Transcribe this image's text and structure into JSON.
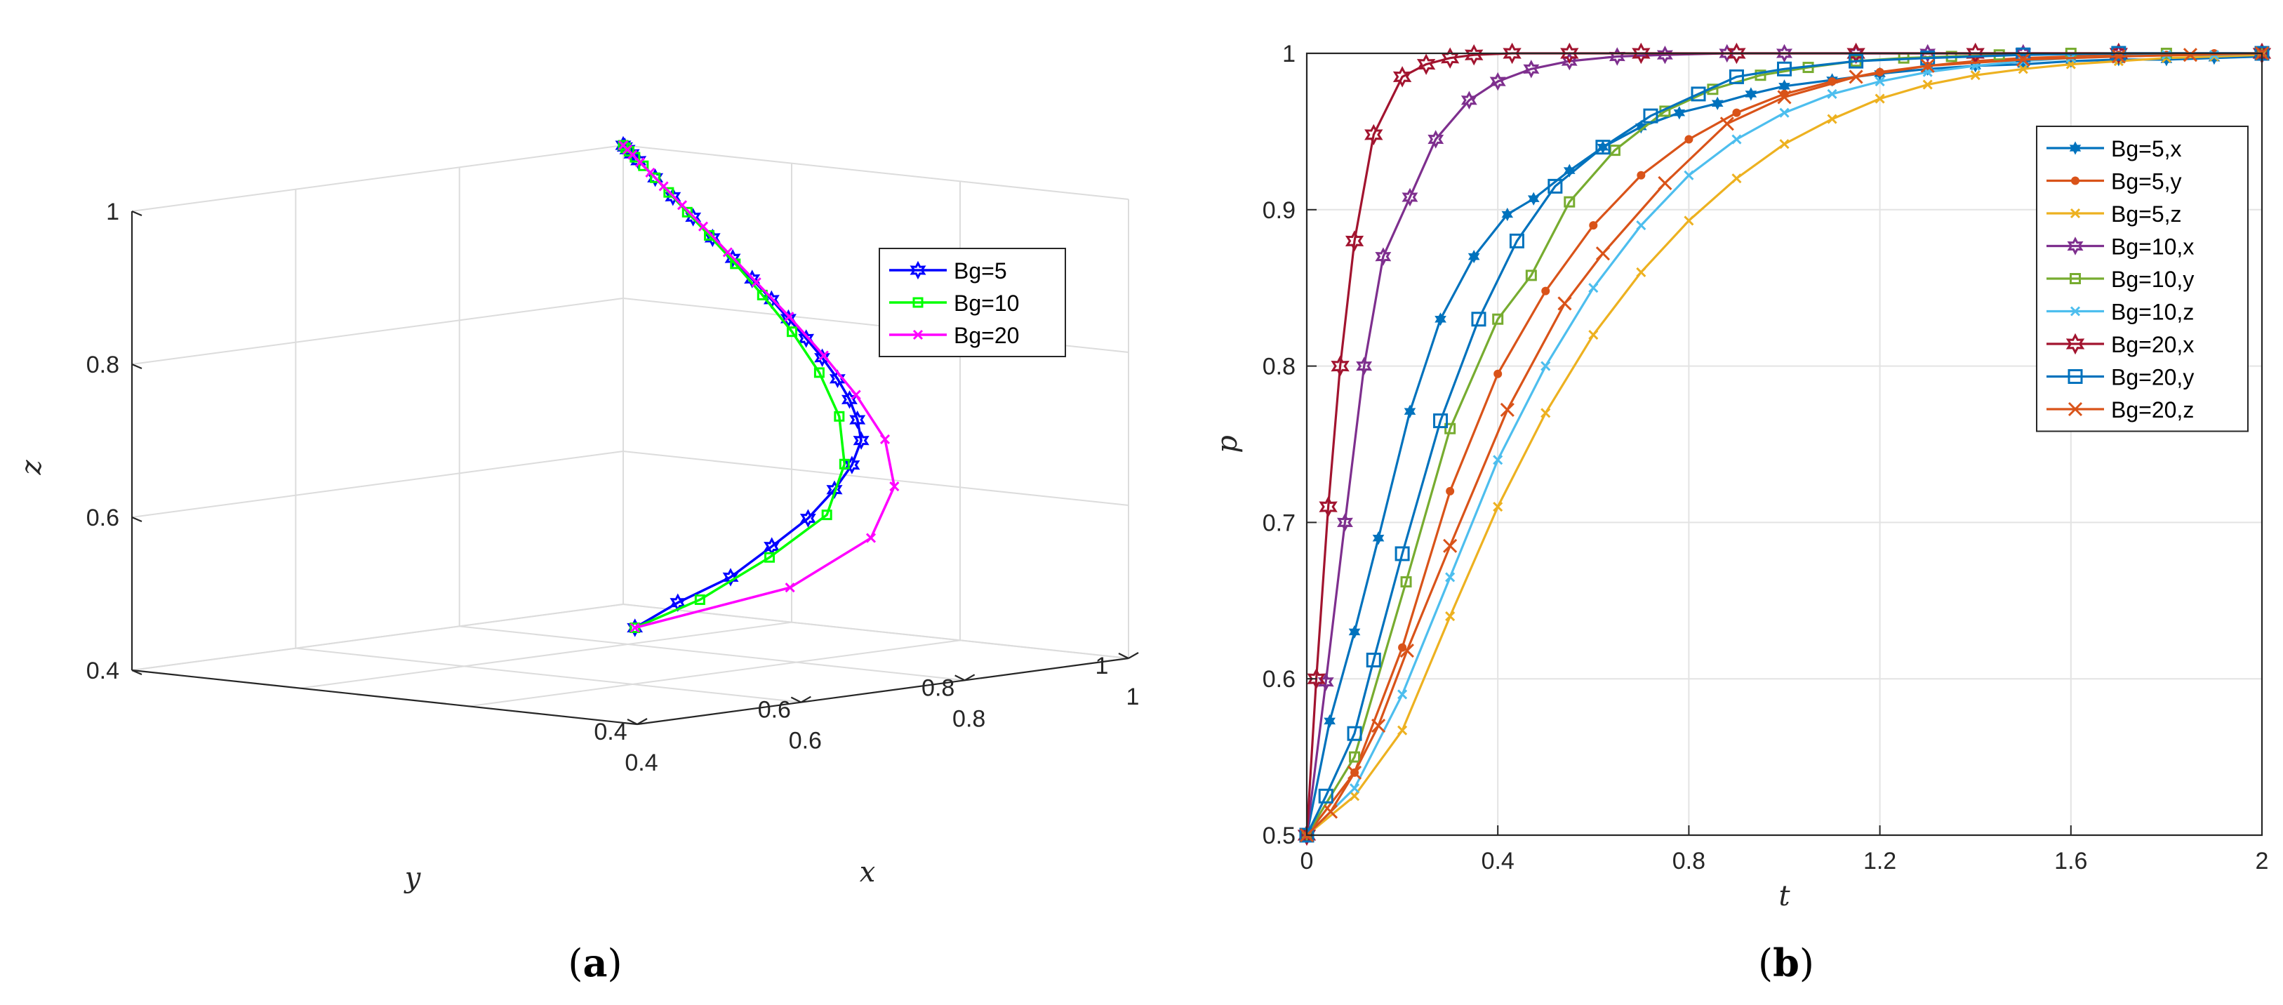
{
  "panels": [
    {
      "paren_open": "(",
      "letter": "a",
      "paren_close": ")"
    },
    {
      "paren_open": "(",
      "letter": "b",
      "paren_close": ")"
    }
  ],
  "chart_data": [
    {
      "type": "line3d",
      "panel": "a",
      "xlabel": "x",
      "ylabel": "y",
      "zlabel": "z",
      "xlim": [
        0.4,
        1
      ],
      "ylim": [
        0.4,
        1
      ],
      "zlim": [
        0.4,
        1
      ],
      "xticks": [
        0.4,
        0.6,
        0.8,
        1
      ],
      "yticks": [
        0.4,
        0.6,
        0.8,
        1
      ],
      "zticks": [
        0.4,
        0.6,
        0.8,
        1
      ],
      "xtick_labels": [
        "0.4",
        "0.6",
        "0.8",
        "1"
      ],
      "ytick_labels": [
        "0.4",
        "0.6",
        "0.8",
        "1"
      ],
      "ztick_labels": [
        "0.4",
        "0.6",
        "0.8",
        "1"
      ],
      "grid": true,
      "legend_position": "top-right",
      "series": [
        {
          "name": "Bg=5",
          "color": "#0000ff",
          "marker": "hexagram",
          "points": [
            [
              0.5,
              0.5,
              0.5
            ],
            [
              0.573,
              0.52,
              0.52
            ],
            [
              0.657,
              0.539,
              0.539
            ],
            [
              0.734,
              0.565,
              0.565
            ],
            [
              0.803,
              0.589,
              0.589
            ],
            [
              0.862,
              0.615,
              0.615
            ],
            [
              0.907,
              0.638,
              0.638
            ],
            [
              0.943,
              0.662,
              0.662
            ],
            [
              0.961,
              0.684,
              0.684
            ],
            [
              0.974,
              0.706,
              0.706
            ],
            [
              0.983,
              0.729,
              0.729
            ],
            [
              0.989,
              0.753,
              0.753
            ],
            [
              0.992,
              0.775,
              0.775
            ],
            [
              0.994,
              0.798,
              0.798
            ],
            [
              0.996,
              0.82,
              0.82
            ],
            [
              0.997,
              0.844,
              0.844
            ],
            [
              0.998,
              0.868,
              0.868
            ],
            [
              0.998,
              0.892,
              0.892
            ],
            [
              0.999,
              0.916,
              0.916
            ],
            [
              0.999,
              0.94,
              0.94
            ],
            [
              1.0,
              0.962,
              0.962
            ],
            [
              1.0,
              0.982,
              0.982
            ],
            [
              1.0,
              0.99,
              0.99
            ],
            [
              1.0,
              0.995,
              0.995
            ],
            [
              1.0,
              0.998,
              0.998
            ],
            [
              1.0,
              1.0,
              1.0
            ]
          ]
        },
        {
          "name": "Bg=10",
          "color": "#00ff00",
          "marker": "square",
          "points": [
            [
              0.5,
              0.5,
              0.5
            ],
            [
              0.6,
              0.52,
              0.52
            ],
            [
              0.72,
              0.554,
              0.554
            ],
            [
              0.827,
              0.59,
              0.59
            ],
            [
              0.9,
              0.64,
              0.64
            ],
            [
              0.945,
              0.69,
              0.69
            ],
            [
              0.97,
              0.738,
              0.738
            ],
            [
              0.984,
              0.784,
              0.784
            ],
            [
              0.991,
              0.826,
              0.826
            ],
            [
              0.995,
              0.862,
              0.862
            ],
            [
              0.997,
              0.895,
              0.895
            ],
            [
              0.998,
              0.922,
              0.922
            ],
            [
              0.999,
              0.945,
              0.945
            ],
            [
              1.0,
              0.962,
              0.962
            ],
            [
              1.0,
              0.976,
              0.976
            ],
            [
              1.0,
              0.986,
              0.986
            ],
            [
              1.0,
              0.993,
              0.993
            ],
            [
              1.0,
              0.997,
              0.997
            ],
            [
              1.0,
              1.0,
              1.0
            ]
          ]
        },
        {
          "name": "Bg=20",
          "color": "#ff00ff",
          "marker": "x",
          "points": [
            [
              0.5,
              0.5,
              0.5
            ],
            [
              0.71,
              0.52,
              0.52
            ],
            [
              0.85,
              0.56,
              0.56
            ],
            [
              0.93,
              0.61,
              0.61
            ],
            [
              0.97,
              0.66,
              0.66
            ],
            [
              0.986,
              0.71,
              0.71
            ],
            [
              0.993,
              0.755,
              0.755
            ],
            [
              0.997,
              0.8,
              0.8
            ],
            [
              0.998,
              0.84,
              0.84
            ],
            [
              0.999,
              0.875,
              0.875
            ],
            [
              1.0,
              0.905,
              0.905
            ],
            [
              1.0,
              0.93,
              0.93
            ],
            [
              1.0,
              0.952,
              0.952
            ],
            [
              1.0,
              0.968,
              0.968
            ],
            [
              1.0,
              0.98,
              0.98
            ],
            [
              1.0,
              0.989,
              0.989
            ],
            [
              1.0,
              0.995,
              0.995
            ],
            [
              1.0,
              1.0,
              1.0
            ]
          ]
        }
      ]
    },
    {
      "type": "line",
      "panel": "b",
      "xlabel": "t",
      "ylabel": "p",
      "xlim": [
        0,
        2
      ],
      "ylim": [
        0.5,
        1
      ],
      "xticks": [
        0,
        0.4,
        0.8,
        1.2,
        1.6,
        2
      ],
      "yticks": [
        0.5,
        0.6,
        0.7,
        0.8,
        0.9,
        1
      ],
      "xtick_labels": [
        "0",
        "0.4",
        "0.8",
        "1.2",
        "1.6",
        "2"
      ],
      "ytick_labels": [
        "0.5",
        "0.6",
        "0.7",
        "0.8",
        "0.9",
        "1"
      ],
      "grid": true,
      "legend_position": "top-right",
      "series": [
        {
          "name": "Bg=5,x",
          "color": "#0072bd",
          "marker": "star",
          "x": [
            0,
            0.048,
            0.1,
            0.15,
            0.216,
            0.28,
            0.35,
            0.42,
            0.475,
            0.55,
            0.62,
            0.7,
            0.78,
            0.86,
            0.93,
            1.0,
            1.1,
            1.2,
            1.3,
            1.4,
            1.5,
            1.6,
            1.7,
            1.8,
            1.9,
            2.0
          ],
          "y": [
            0.5,
            0.573,
            0.63,
            0.69,
            0.771,
            0.83,
            0.87,
            0.897,
            0.907,
            0.925,
            0.94,
            0.953,
            0.962,
            0.968,
            0.974,
            0.979,
            0.983,
            0.987,
            0.99,
            0.992,
            0.993,
            0.995,
            0.996,
            0.996,
            0.997,
            0.998
          ]
        },
        {
          "name": "Bg=5,y",
          "color": "#d95319",
          "marker": "dot",
          "x": [
            0,
            0.1,
            0.2,
            0.3,
            0.4,
            0.5,
            0.6,
            0.7,
            0.8,
            0.9,
            1.0,
            1.1,
            1.2,
            1.3,
            1.4,
            1.5,
            1.6,
            1.7,
            1.8,
            1.9,
            2.0
          ],
          "y": [
            0.5,
            0.54,
            0.62,
            0.72,
            0.795,
            0.848,
            0.89,
            0.922,
            0.945,
            0.962,
            0.974,
            0.982,
            0.988,
            0.992,
            0.995,
            0.997,
            0.998,
            0.999,
            0.999,
            1.0,
            1.0
          ]
        },
        {
          "name": "Bg=5,z",
          "color": "#edb120",
          "marker": "x-small",
          "x": [
            0,
            0.1,
            0.2,
            0.3,
            0.4,
            0.5,
            0.6,
            0.7,
            0.8,
            0.9,
            1.0,
            1.1,
            1.2,
            1.3,
            1.4,
            1.5,
            1.6,
            1.7,
            1.8,
            1.9,
            2.0
          ],
          "y": [
            0.5,
            0.525,
            0.567,
            0.64,
            0.71,
            0.77,
            0.82,
            0.86,
            0.893,
            0.92,
            0.942,
            0.958,
            0.971,
            0.98,
            0.986,
            0.99,
            0.993,
            0.995,
            0.997,
            0.998,
            0.999
          ]
        },
        {
          "name": "Bg=10,x",
          "color": "#7e2f8e",
          "marker": "hexagram",
          "x": [
            0,
            0.04,
            0.08,
            0.12,
            0.16,
            0.216,
            0.27,
            0.34,
            0.4,
            0.47,
            0.55,
            0.65,
            0.75,
            0.88,
            1.0,
            1.15,
            1.3,
            1.5,
            1.7,
            2.0
          ],
          "y": [
            0.5,
            0.598,
            0.7,
            0.8,
            0.87,
            0.908,
            0.945,
            0.97,
            0.982,
            0.99,
            0.995,
            0.998,
            0.999,
            1.0,
            1.0,
            1.0,
            1.0,
            1.0,
            1.0,
            1.0
          ]
        },
        {
          "name": "Bg=10,y",
          "color": "#77ac30",
          "marker": "square-small",
          "x": [
            0,
            0.1,
            0.208,
            0.3,
            0.4,
            0.47,
            0.55,
            0.645,
            0.75,
            0.85,
            0.95,
            1.05,
            1.15,
            1.25,
            1.35,
            1.45,
            1.6,
            1.8,
            2.0
          ],
          "y": [
            0.5,
            0.55,
            0.662,
            0.76,
            0.83,
            0.858,
            0.905,
            0.938,
            0.963,
            0.977,
            0.986,
            0.991,
            0.995,
            0.997,
            0.998,
            0.999,
            1.0,
            1.0,
            1.0
          ]
        },
        {
          "name": "Bg=10,z",
          "color": "#4dbeee",
          "marker": "x-small",
          "x": [
            0,
            0.1,
            0.2,
            0.3,
            0.4,
            0.5,
            0.6,
            0.7,
            0.8,
            0.9,
            1.0,
            1.1,
            1.2,
            1.3,
            1.4,
            1.5,
            1.6,
            1.7,
            1.8,
            1.9,
            2.0
          ],
          "y": [
            0.5,
            0.53,
            0.59,
            0.665,
            0.74,
            0.8,
            0.85,
            0.89,
            0.922,
            0.945,
            0.962,
            0.974,
            0.982,
            0.988,
            0.992,
            0.995,
            0.997,
            0.998,
            0.999,
            0.999,
            1.0
          ]
        },
        {
          "name": "Bg=20,x",
          "color": "#a2142f",
          "marker": "hexagram-large",
          "x": [
            0,
            0.02,
            0.045,
            0.07,
            0.1,
            0.14,
            0.2,
            0.25,
            0.3,
            0.35,
            0.43,
            0.55,
            0.7,
            0.9,
            1.15,
            1.4,
            1.7,
            2.0
          ],
          "y": [
            0.5,
            0.6,
            0.71,
            0.8,
            0.88,
            0.948,
            0.985,
            0.993,
            0.997,
            0.999,
            1.0,
            1.0,
            1.0,
            1.0,
            1.0,
            1.0,
            1.0,
            1.0
          ]
        },
        {
          "name": "Bg=20,y",
          "color": "#0072bd",
          "marker": "square-large",
          "x": [
            0,
            0.04,
            0.1,
            0.14,
            0.2,
            0.28,
            0.36,
            0.44,
            0.52,
            0.62,
            0.72,
            0.82,
            0.9,
            1.0,
            1.15,
            1.3,
            1.5,
            1.7,
            2.0
          ],
          "y": [
            0.5,
            0.525,
            0.565,
            0.612,
            0.68,
            0.765,
            0.83,
            0.88,
            0.915,
            0.94,
            0.96,
            0.974,
            0.985,
            0.99,
            0.995,
            0.997,
            0.999,
            1.0,
            1.0
          ]
        },
        {
          "name": "Bg=20,z",
          "color": "#d95319",
          "marker": "x-large",
          "x": [
            0,
            0.05,
            0.1,
            0.15,
            0.21,
            0.3,
            0.42,
            0.54,
            0.62,
            0.75,
            0.88,
            1.0,
            1.15,
            1.3,
            1.5,
            1.7,
            1.85,
            2.0
          ],
          "y": [
            0.5,
            0.515,
            0.54,
            0.57,
            0.618,
            0.685,
            0.772,
            0.84,
            0.872,
            0.917,
            0.955,
            0.972,
            0.985,
            0.992,
            0.996,
            0.998,
            0.999,
            1.0
          ]
        }
      ]
    }
  ]
}
